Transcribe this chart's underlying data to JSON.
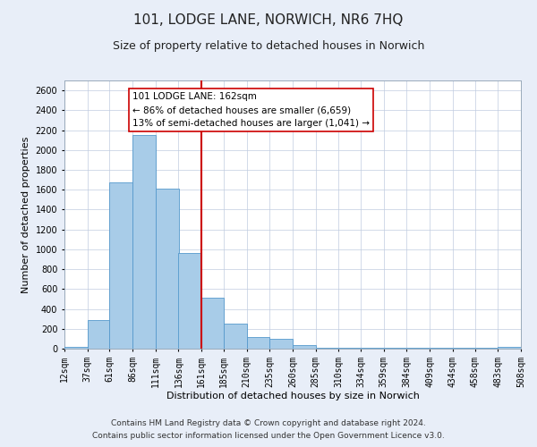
{
  "title": "101, LODGE LANE, NORWICH, NR6 7HQ",
  "subtitle": "Size of property relative to detached houses in Norwich",
  "xlabel": "Distribution of detached houses by size in Norwich",
  "ylabel": "Number of detached properties",
  "bar_color": "#a8cce8",
  "bar_edge_color": "#5599cc",
  "vline_x": 161,
  "vline_color": "#cc0000",
  "annotation_title": "101 LODGE LANE: 162sqm",
  "annotation_line1": "← 86% of detached houses are smaller (6,659)",
  "annotation_line2": "13% of semi-detached houses are larger (1,041) →",
  "annotation_box_color": "#ffffff",
  "annotation_box_edge": "#cc0000",
  "bin_edges": [
    12,
    37,
    61,
    86,
    111,
    136,
    161,
    185,
    210,
    235,
    260,
    285,
    310,
    334,
    359,
    384,
    409,
    434,
    458,
    483,
    508
  ],
  "bin_counts": [
    20,
    290,
    1670,
    2150,
    1610,
    960,
    510,
    250,
    120,
    95,
    35,
    5,
    5,
    5,
    5,
    5,
    5,
    5,
    5,
    20
  ],
  "ylim": [
    0,
    2700
  ],
  "yticks": [
    0,
    200,
    400,
    600,
    800,
    1000,
    1200,
    1400,
    1600,
    1800,
    2000,
    2200,
    2400,
    2600
  ],
  "xtick_labels": [
    "12sqm",
    "37sqm",
    "61sqm",
    "86sqm",
    "111sqm",
    "136sqm",
    "161sqm",
    "185sqm",
    "210sqm",
    "235sqm",
    "260sqm",
    "285sqm",
    "310sqm",
    "334sqm",
    "359sqm",
    "384sqm",
    "409sqm",
    "434sqm",
    "458sqm",
    "483sqm",
    "508sqm"
  ],
  "footer1": "Contains HM Land Registry data © Crown copyright and database right 2024.",
  "footer2": "Contains public sector information licensed under the Open Government Licence v3.0.",
  "bg_color": "#e8eef8",
  "plot_bg_color": "#ffffff",
  "title_fontsize": 11,
  "subtitle_fontsize": 9,
  "axis_label_fontsize": 8,
  "tick_fontsize": 7,
  "footer_fontsize": 6.5,
  "annotation_fontsize": 7.5
}
